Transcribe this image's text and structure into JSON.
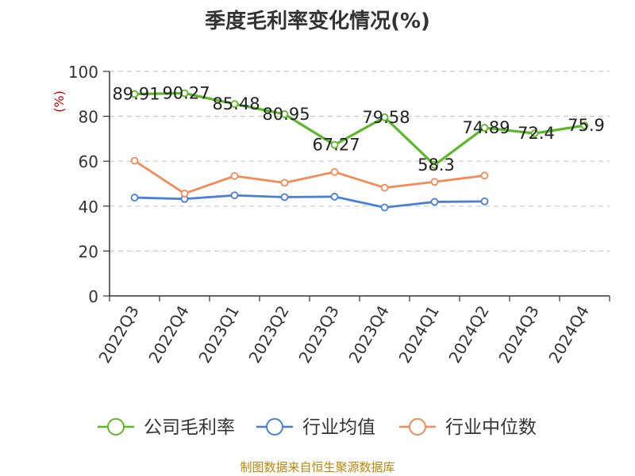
{
  "chart_data": {
    "type": "line",
    "title": "季度毛利率变化情况(%)",
    "ylabel": "(%)",
    "xlabel": "",
    "ylim": [
      0,
      100
    ],
    "yticks": [
      0,
      20,
      40,
      60,
      80,
      100
    ],
    "grid": true,
    "legend_position": "bottom",
    "categories": [
      "2022Q3",
      "2022Q4",
      "2023Q1",
      "2023Q2",
      "2023Q3",
      "2023Q4",
      "2024Q1",
      "2024Q2",
      "2024Q3",
      "2024Q4"
    ],
    "series": [
      {
        "name": "公司毛利率",
        "color": "#5cb82a",
        "values": [
          89.91,
          90.27,
          85.48,
          80.95,
          67.27,
          79.58,
          58.3,
          74.89,
          72.4,
          75.9
        ],
        "labels": [
          "89.91",
          "90.27",
          "85.48",
          "80.95",
          "67.27",
          "79.58",
          "58.3",
          "74.89",
          "72.4",
          "75.9"
        ]
      },
      {
        "name": "行业均值",
        "color": "#4a7fd8",
        "values": [
          43.8,
          43.2,
          44.8,
          44.0,
          44.2,
          39.4,
          41.9,
          42.1,
          null,
          null
        ]
      },
      {
        "name": "行业中位数",
        "color": "#f28b5a",
        "values": [
          60.2,
          45.6,
          53.4,
          50.4,
          55.2,
          48.2,
          50.8,
          53.6,
          null,
          null
        ]
      }
    ]
  },
  "source_text": "制图数据来自恒生聚源数据库"
}
